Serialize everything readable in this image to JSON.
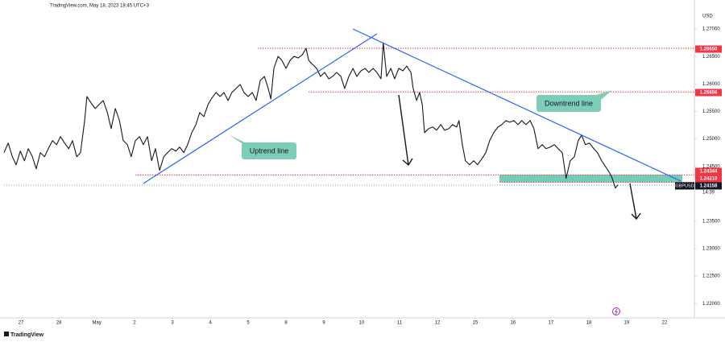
{
  "chart_data": {
    "type": "line",
    "title": "TradingView.com, May 18, 2023 18:45 UTC+3",
    "y_axis_unit": "USD",
    "ylim": [
      1.2174,
      1.2731
    ],
    "yticks": [
      {
        "value": 1.22,
        "label": "1.22000"
      },
      {
        "value": 1.225,
        "label": "1.22500"
      },
      {
        "value": 1.23,
        "label": "1.23000"
      },
      {
        "value": 1.235,
        "label": "1.23500"
      },
      {
        "value": 1.245,
        "label": "1.24500"
      },
      {
        "value": 1.25,
        "label": "1.25000"
      },
      {
        "value": 1.255,
        "label": "1.25500"
      },
      {
        "value": 1.26,
        "label": "1.26000"
      },
      {
        "value": 1.265,
        "label": "1.26500"
      },
      {
        "value": 1.27,
        "label": "1.27000"
      }
    ],
    "xlim": [
      -0.45,
      17.79
    ],
    "xticks": [
      {
        "value": 0,
        "label": "27"
      },
      {
        "value": 1,
        "label": "28"
      },
      {
        "value": 2,
        "label": "May"
      },
      {
        "value": 3,
        "label": "2"
      },
      {
        "value": 4,
        "label": "3"
      },
      {
        "value": 5,
        "label": "4"
      },
      {
        "value": 6,
        "label": "5"
      },
      {
        "value": 7,
        "label": "8"
      },
      {
        "value": 8,
        "label": "9"
      },
      {
        "value": 9,
        "label": "10"
      },
      {
        "value": 10,
        "label": "11"
      },
      {
        "value": 11,
        "label": "12"
      },
      {
        "value": 12,
        "label": "15"
      },
      {
        "value": 13,
        "label": "16"
      },
      {
        "value": 14,
        "label": "17"
      },
      {
        "value": 15,
        "label": "18"
      },
      {
        "value": 16,
        "label": "19"
      },
      {
        "value": 17,
        "label": "22"
      }
    ],
    "grid": false,
    "series": [
      {
        "name": "GBPUSD",
        "color": "#131722",
        "x": [
          -0.45,
          -0.34,
          -0.23,
          -0.13,
          -0.02,
          0.09,
          0.19,
          0.3,
          0.4,
          0.51,
          0.62,
          0.72,
          0.83,
          0.94,
          1.04,
          1.15,
          1.26,
          1.36,
          1.47,
          1.57,
          1.68,
          1.74,
          1.85,
          1.96,
          2.06,
          2.17,
          2.28,
          2.38,
          2.49,
          2.6,
          2.7,
          2.81,
          2.91,
          3.02,
          3.13,
          3.23,
          3.34,
          3.45,
          3.55,
          3.66,
          3.77,
          3.87,
          3.98,
          4.09,
          4.19,
          4.3,
          4.4,
          4.51,
          4.62,
          4.72,
          4.83,
          4.94,
          5.04,
          5.15,
          5.26,
          5.36,
          5.47,
          5.57,
          5.68,
          5.79,
          5.89,
          6.0,
          6.11,
          6.21,
          6.32,
          6.43,
          6.53,
          6.6,
          6.68,
          6.79,
          6.89,
          7.0,
          7.11,
          7.21,
          7.32,
          7.43,
          7.53,
          7.6,
          7.7,
          7.81,
          7.91,
          8.02,
          8.13,
          8.23,
          8.34,
          8.45,
          8.55,
          8.66,
          8.77,
          8.87,
          8.98,
          9.09,
          9.19,
          9.3,
          9.4,
          9.51,
          9.57,
          9.66,
          9.77,
          9.87,
          9.98,
          10.09,
          10.19,
          10.3,
          10.36,
          10.45,
          10.53,
          10.6,
          10.66,
          10.77,
          10.87,
          10.98,
          11.09,
          11.19,
          11.3,
          11.4,
          11.51,
          11.57,
          11.66,
          11.74,
          11.85,
          11.96,
          12.06,
          12.17,
          12.28,
          12.38,
          12.49,
          12.6,
          12.7,
          12.81,
          12.91,
          13.02,
          13.13,
          13.23,
          13.34,
          13.45,
          13.55,
          13.66,
          13.77,
          13.87,
          13.98,
          14.09,
          14.19,
          14.3,
          14.4,
          14.51,
          14.62,
          14.72,
          14.81,
          14.91,
          15.02,
          15.13,
          15.23,
          15.34,
          15.45,
          15.55,
          15.62,
          15.7,
          15.77
        ],
        "values": [
          1.24749,
          1.24924,
          1.24675,
          1.24529,
          1.24778,
          1.24602,
          1.24822,
          1.24675,
          1.24456,
          1.24749,
          1.24675,
          1.24822,
          1.24968,
          1.24895,
          1.25041,
          1.24924,
          1.24822,
          1.24968,
          1.24675,
          1.24749,
          1.25333,
          1.25772,
          1.25655,
          1.25553,
          1.25626,
          1.25699,
          1.2548,
          1.25187,
          1.25553,
          1.25333,
          1.24968,
          1.24895,
          1.24675,
          1.24968,
          1.25041,
          1.24895,
          1.25041,
          1.24602,
          1.24822,
          1.24427,
          1.24675,
          1.24749,
          1.24822,
          1.24778,
          1.24851,
          1.24749,
          1.24895,
          1.25114,
          1.2526,
          1.2548,
          1.25406,
          1.25626,
          1.25743,
          1.25845,
          1.25772,
          1.25845,
          1.25699,
          1.25845,
          1.25918,
          1.25991,
          1.25845,
          1.25772,
          1.25845,
          1.25699,
          1.26064,
          1.26137,
          1.25918,
          1.25728,
          1.26284,
          1.26503,
          1.2643,
          1.26284,
          1.2643,
          1.26503,
          1.26474,
          1.26532,
          1.26649,
          1.2643,
          1.26357,
          1.26284,
          1.26137,
          1.26211,
          1.26094,
          1.26137,
          1.26211,
          1.26137,
          1.25918,
          1.26137,
          1.26284,
          1.26137,
          1.2624,
          1.26284,
          1.26211,
          1.26284,
          1.26211,
          1.26094,
          1.26751,
          1.26137,
          1.26284,
          1.26094,
          1.26284,
          1.2624,
          1.26327,
          1.26211,
          1.25918,
          1.25699,
          1.25845,
          1.25626,
          1.25114,
          1.25187,
          1.25216,
          1.25158,
          1.2526,
          1.25158,
          1.25187,
          1.2526,
          1.25216,
          1.25333,
          1.24895,
          1.24602,
          1.24529,
          1.24602,
          1.24529,
          1.24632,
          1.24749,
          1.24968,
          1.25114,
          1.25216,
          1.2526,
          1.25333,
          1.25304,
          1.25333,
          1.2526,
          1.25333,
          1.2526,
          1.25333,
          1.25187,
          1.24822,
          1.24895,
          1.24822,
          1.24851,
          1.24895,
          1.24822,
          1.24749,
          1.24281,
          1.24602,
          1.24675,
          1.24968,
          1.2507,
          1.24895,
          1.24924,
          1.24822,
          1.24749,
          1.24602,
          1.24485,
          1.24383,
          1.24281,
          1.24105,
          1.24158
        ]
      }
    ],
    "levels": [
      {
        "value": 1.2665,
        "label": "1.26650",
        "color": "#f23645"
      },
      {
        "value": 1.25856,
        "label": "1.25856",
        "color": "#f23645"
      },
      {
        "value": 1.24344,
        "label": "1.24344",
        "color": "#f23645"
      },
      {
        "value": 1.2421,
        "label": "1.24210",
        "color": "#f23645"
      },
      {
        "value": 1.24158,
        "label": "1.24158",
        "color": "#131722"
      }
    ],
    "countdown": "14:39",
    "annotations": [
      "Uptrend line",
      "Downtrend line"
    ],
    "footer": "TradingView"
  }
}
